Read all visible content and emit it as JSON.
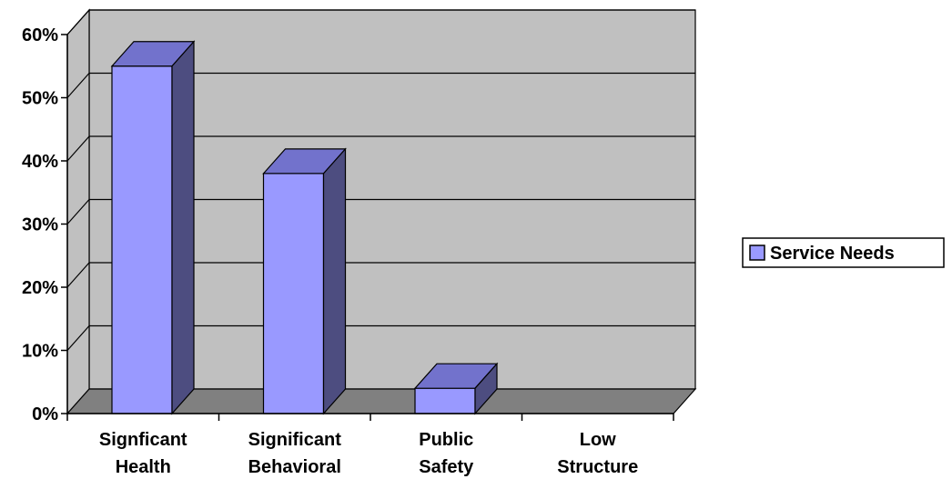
{
  "chart_data": {
    "type": "bar",
    "categories": [
      [
        "Signficant",
        "Health"
      ],
      [
        "Significant",
        "Behavioral"
      ],
      [
        "Public",
        "Safety"
      ],
      [
        "Low",
        "Structure"
      ]
    ],
    "series": [
      {
        "name": "Service Needs",
        "values": [
          55,
          38,
          4,
          0
        ]
      }
    ],
    "y_ticks": [
      "0%",
      "10%",
      "20%",
      "30%",
      "40%",
      "50%",
      "60%"
    ],
    "ylim": [
      0,
      60
    ],
    "grid": true,
    "legend": "right",
    "colors": {
      "bar_front": "#9999ff",
      "bar_top": "#7272cc",
      "bar_side": "#4d4d80",
      "back_wall": "#c0c0c0",
      "floor": "#808080",
      "side_wall": "#c0c0c0"
    }
  }
}
